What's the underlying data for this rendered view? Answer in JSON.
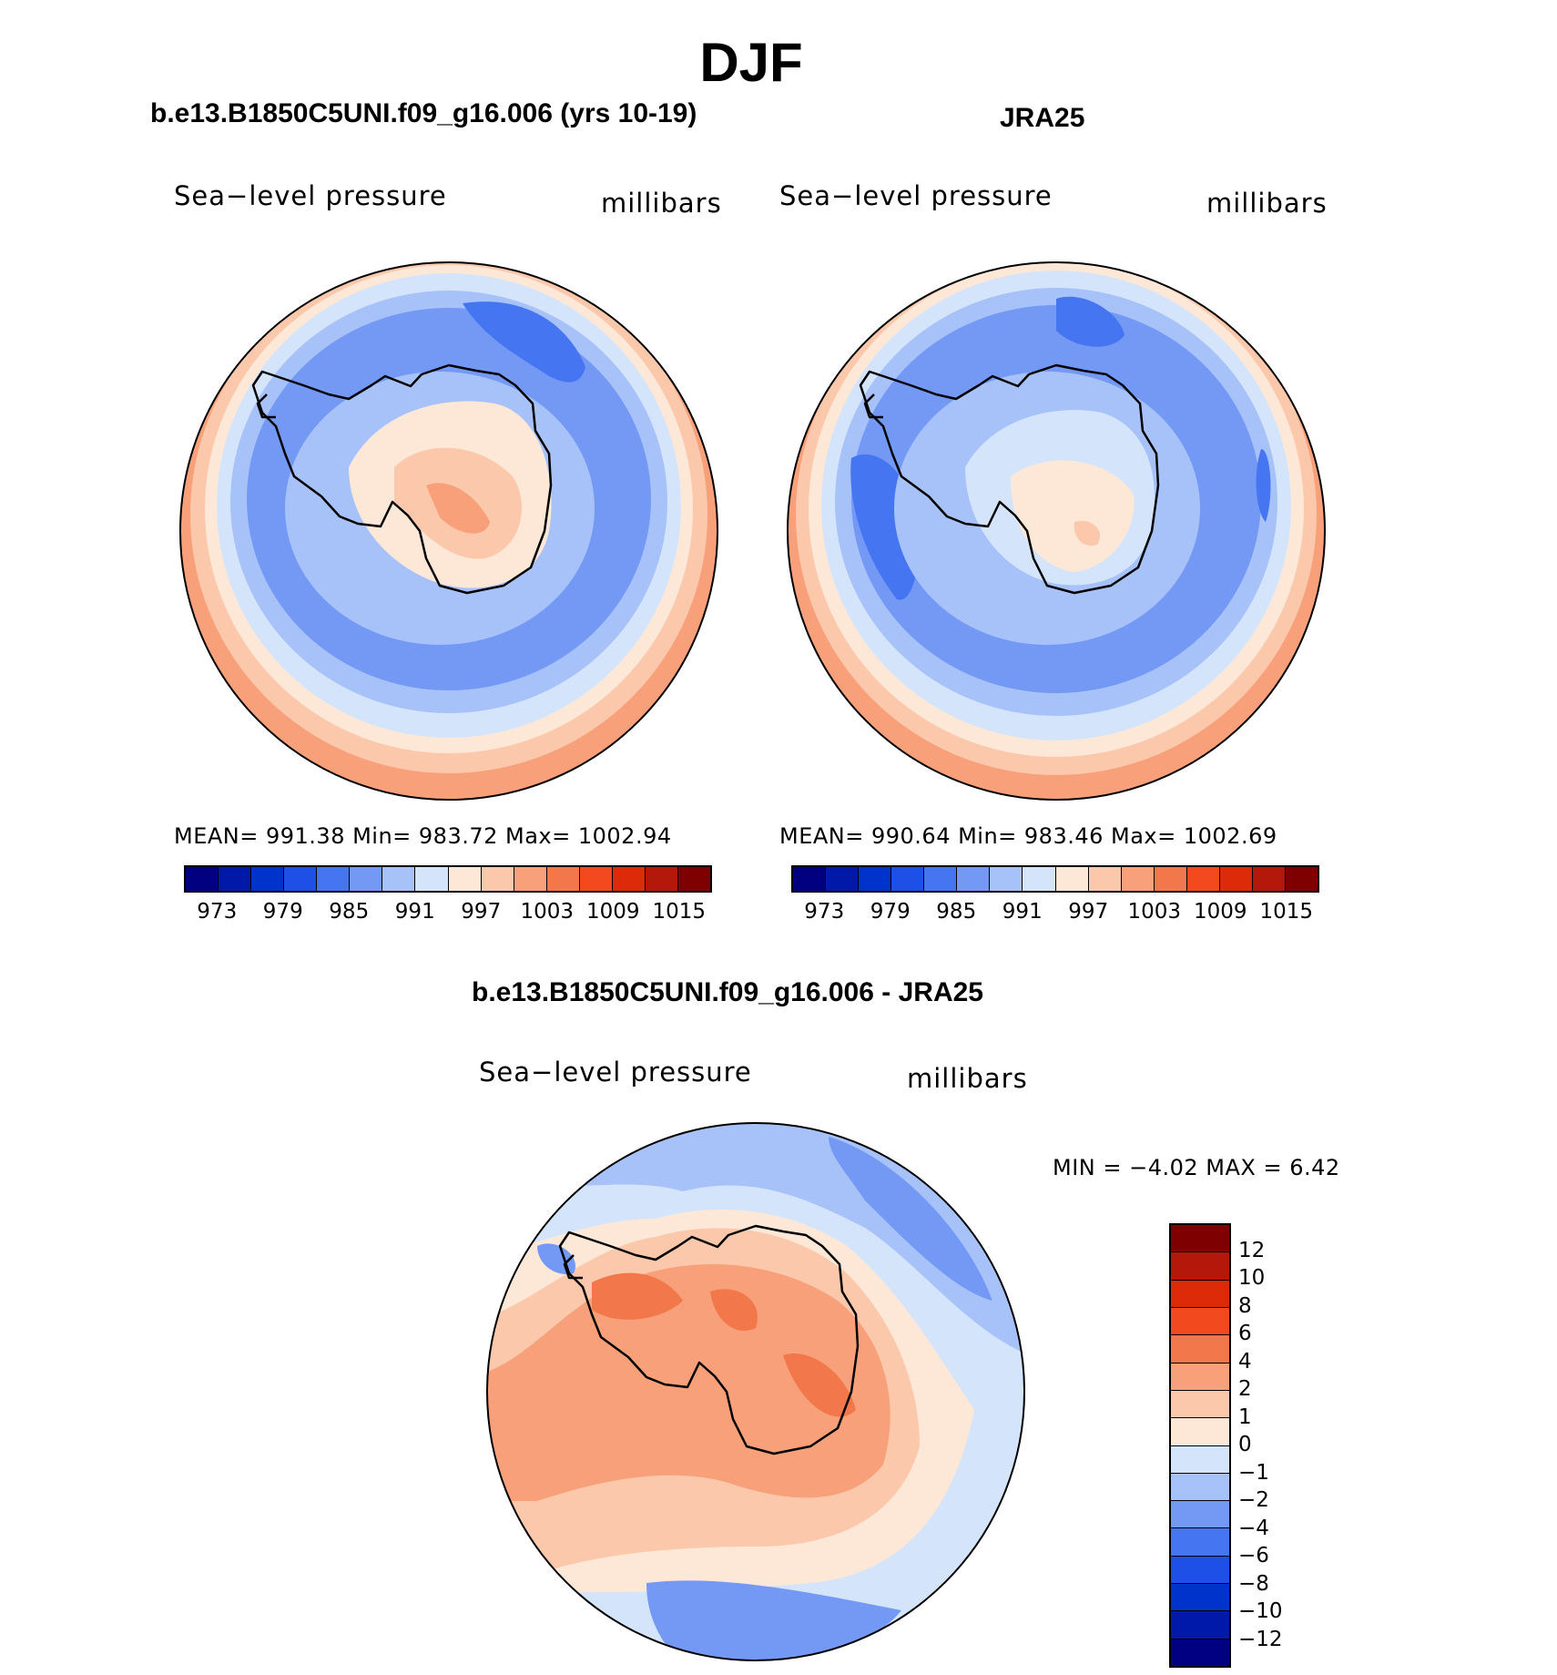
{
  "main_title": "DJF",
  "panels": {
    "model": {
      "title": "b.e13.B1850C5UNI.f09_g16.006 (yrs 10-19)",
      "left_label": "Sea−level pressure",
      "right_label": "millibars",
      "stats": "MEAN= 991.38   Min= 983.72   Max= 1002.94"
    },
    "obs": {
      "title": "JRA25",
      "left_label": "Sea−level pressure",
      "right_label": "millibars",
      "stats": "MEAN= 990.64   Min= 983.46   Max= 1002.69"
    },
    "diff": {
      "title": "b.e13.B1850C5UNI.f09_g16.006 - JRA25",
      "left_label": "Sea−level pressure",
      "right_label": "millibars",
      "stats": "MIN =   −4.02 MAX =    6.42"
    }
  },
  "colorbar_levels": [
    "973",
    "979",
    "985",
    "991",
    "997",
    "1003",
    "1009",
    "1015"
  ],
  "colorbar_colors": [
    "#000080",
    "#0019a8",
    "#0033cc",
    "#1e4fe6",
    "#4575f0",
    "#7399f5",
    "#a7c2f8",
    "#d4e5fb",
    "#fde8d8",
    "#fbc8ac",
    "#f7a07a",
    "#f2784b",
    "#f24a1e",
    "#dd2a08",
    "#b4180a",
    "#7f0000"
  ],
  "diff_colorbar_levels": [
    "12",
    "10",
    "8",
    "6",
    "4",
    "2",
    "1",
    "0",
    "−1",
    "−2",
    "−4",
    "−6",
    "−8",
    "−10",
    "−12"
  ],
  "diff_colorbar_colors": [
    "#7f0000",
    "#b4180a",
    "#dd2a08",
    "#f24a1e",
    "#f2784b",
    "#f7a07a",
    "#fbc8ac",
    "#fde8d8",
    "#d4e5fb",
    "#a7c2f8",
    "#7399f5",
    "#4575f0",
    "#1e4fe6",
    "#0033cc",
    "#0019a8",
    "#000080"
  ]
}
